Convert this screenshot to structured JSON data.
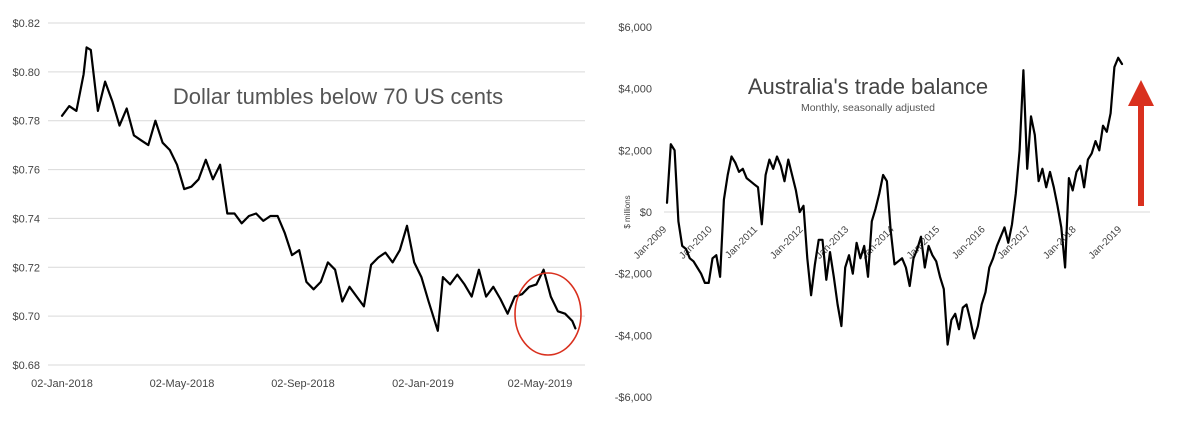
{
  "chart_data": [
    {
      "type": "line",
      "title": "Dollar tumbles below 70 US cents",
      "x_ticks": [
        "02-Jan-2018",
        "02-May-2018",
        "02-Sep-2018",
        "02-Jan-2019",
        "02-May-2019"
      ],
      "y_ticks": [
        "$0.68",
        "$0.70",
        "$0.72",
        "$0.74",
        "$0.76",
        "$0.78",
        "$0.80",
        "$0.82"
      ],
      "ylim": [
        0.68,
        0.82
      ],
      "xlim": [
        "2018-01-02",
        "2019-05-02"
      ],
      "grid": true,
      "annotation": "red circle around latest values",
      "accent_color": "#d9301e",
      "series": [
        {
          "x": [
            "2018-01-02",
            "2018-01-09",
            "2018-01-16",
            "2018-01-23",
            "2018-01-26",
            "2018-01-30",
            "2018-02-06",
            "2018-02-13",
            "2018-02-20",
            "2018-02-27",
            "2018-03-06",
            "2018-03-13",
            "2018-03-20",
            "2018-03-27",
            "2018-04-03",
            "2018-04-10",
            "2018-04-17",
            "2018-04-24",
            "2018-05-01",
            "2018-05-08",
            "2018-05-15",
            "2018-05-22",
            "2018-05-29",
            "2018-06-05",
            "2018-06-12",
            "2018-06-19",
            "2018-06-26",
            "2018-07-03",
            "2018-07-10",
            "2018-07-17",
            "2018-07-24",
            "2018-07-31",
            "2018-08-07",
            "2018-08-14",
            "2018-08-21",
            "2018-08-28",
            "2018-09-04",
            "2018-09-11",
            "2018-09-18",
            "2018-09-25",
            "2018-10-02",
            "2018-10-09",
            "2018-10-16",
            "2018-10-23",
            "2018-10-30",
            "2018-11-06",
            "2018-11-13",
            "2018-11-20",
            "2018-11-27",
            "2018-12-04",
            "2018-12-11",
            "2018-12-18",
            "2018-12-25",
            "2019-01-03",
            "2019-01-08",
            "2019-01-15",
            "2019-01-22",
            "2019-01-29",
            "2019-02-05",
            "2019-02-12",
            "2019-02-19",
            "2019-02-26",
            "2019-03-05",
            "2019-03-12",
            "2019-03-19",
            "2019-03-26",
            "2019-04-02",
            "2019-04-09",
            "2019-04-16",
            "2019-04-23",
            "2019-04-30",
            "2019-05-07",
            "2019-05-14",
            "2019-05-17"
          ],
          "values": [
            0.782,
            0.786,
            0.784,
            0.799,
            0.81,
            0.809,
            0.784,
            0.796,
            0.788,
            0.778,
            0.785,
            0.774,
            0.772,
            0.77,
            0.78,
            0.771,
            0.768,
            0.762,
            0.752,
            0.753,
            0.756,
            0.764,
            0.756,
            0.762,
            0.742,
            0.742,
            0.738,
            0.741,
            0.742,
            0.739,
            0.741,
            0.741,
            0.734,
            0.725,
            0.727,
            0.714,
            0.711,
            0.714,
            0.722,
            0.719,
            0.706,
            0.712,
            0.708,
            0.704,
            0.721,
            0.724,
            0.726,
            0.722,
            0.727,
            0.737,
            0.722,
            0.716,
            0.706,
            0.694,
            0.716,
            0.713,
            0.717,
            0.713,
            0.708,
            0.719,
            0.708,
            0.712,
            0.707,
            0.701,
            0.708,
            0.709,
            0.712,
            0.713,
            0.719,
            0.708,
            0.702,
            0.701,
            0.698,
            0.695
          ]
        }
      ]
    },
    {
      "type": "line",
      "title": "Australia's trade balance",
      "subtitle": "Monthly, seasonally adjusted",
      "ylabel": "$ millions",
      "x_ticks": [
        "Jan-2009",
        "Jan-2010",
        "Jan-2011",
        "Jan-2012",
        "Jan-2013",
        "Jan-2014",
        "Jan-2015",
        "Jan-2016",
        "Jan-2017",
        "Jan-2018",
        "Jan-2019"
      ],
      "y_ticks": [
        "-$6,000",
        "-$4,000",
        "-$2,000",
        "$0",
        "$2,000",
        "$4,000",
        "$6,000"
      ],
      "ylim": [
        -6000,
        6000
      ],
      "grid": false,
      "annotation": "red upward arrow",
      "accent_color": "#d9301e",
      "series": [
        {
          "x_start": "2009-01",
          "frequency": "monthly",
          "values": [
            300,
            2200,
            2000,
            -300,
            -1100,
            -1200,
            -1500,
            -1600,
            -1800,
            -2000,
            -2300,
            -2300,
            -1500,
            -1400,
            -2100,
            400,
            1200,
            1800,
            1600,
            1300,
            1400,
            1100,
            1000,
            900,
            800,
            -400,
            1200,
            1700,
            1400,
            1800,
            1500,
            1000,
            1700,
            1200,
            700,
            0,
            200,
            -1500,
            -2700,
            -1700,
            -900,
            -900,
            -2200,
            -1300,
            -2100,
            -3000,
            -3700,
            -1800,
            -1400,
            -2000,
            -1000,
            -1500,
            -1100,
            -2100,
            -300,
            100,
            600,
            1200,
            1000,
            -600,
            -1700,
            -1600,
            -1500,
            -1800,
            -2400,
            -1500,
            -1200,
            -800,
            -1800,
            -1100,
            -1400,
            -1600,
            -2100,
            -2500,
            -4300,
            -3500,
            -3300,
            -3800,
            -3100,
            -3000,
            -3500,
            -4100,
            -3700,
            -3000,
            -2600,
            -1800,
            -1500,
            -1100,
            -800,
            -500,
            -1000,
            -400,
            600,
            2000,
            4600,
            1400,
            3100,
            2500,
            1000,
            1400,
            800,
            1300,
            800,
            200,
            -500,
            -1800,
            1100,
            700,
            1300,
            1500,
            800,
            1700,
            1900,
            2300,
            2000,
            2800,
            2600,
            3200,
            4700,
            5000,
            4800
          ]
        }
      ]
    }
  ]
}
